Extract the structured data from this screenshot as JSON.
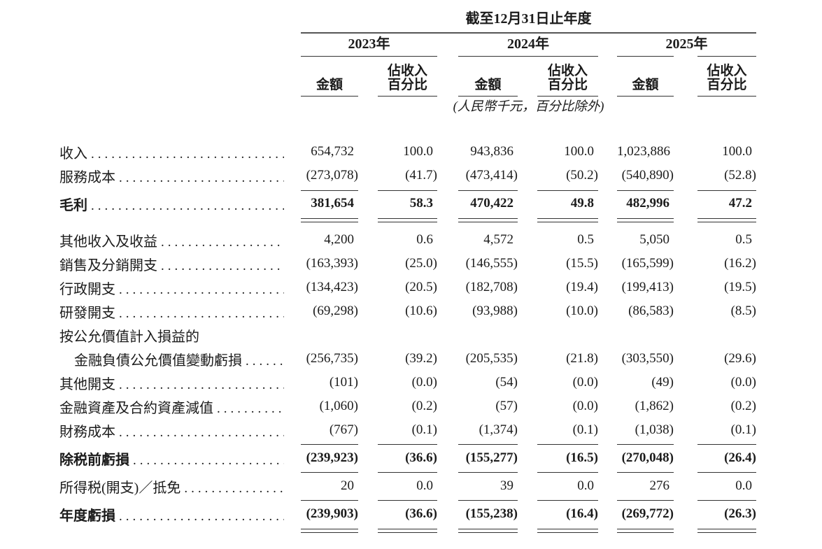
{
  "header": {
    "period_title": "截至12月31日止年度",
    "years": [
      {
        "label": "2023年"
      },
      {
        "label": "2024年"
      },
      {
        "label": "2025年"
      }
    ],
    "amount_header": "金額",
    "percent_header_line1": "佔收入",
    "percent_header_line2": "百分比",
    "unit_note": "(人民幣千元，百分比除外)"
  },
  "table": {
    "column_keys": [
      "amount_2023",
      "pct_2023",
      "amount_2024",
      "pct_2024",
      "amount_2025",
      "pct_2025"
    ],
    "rows": [
      {
        "type": "data",
        "label": "收入",
        "values": [
          "654,732",
          "100.0",
          "943,836",
          "100.0",
          "1,023,886",
          "100.0"
        ]
      },
      {
        "type": "data",
        "label": "服務成本",
        "values": [
          "(273,078)",
          "(41.7)",
          "(473,414)",
          "(50.2)",
          "(540,890)",
          "(52.8)"
        ]
      },
      {
        "type": "rule",
        "variant": "a"
      },
      {
        "type": "data",
        "variant": "mid",
        "bold": true,
        "label": "毛利",
        "values": [
          "381,654",
          "58.3",
          "470,422",
          "49.8",
          "482,996",
          "47.2"
        ]
      },
      {
        "type": "double-rule",
        "variant": "gross"
      },
      {
        "type": "data",
        "label": "其他收入及收益",
        "values": [
          "4,200",
          "0.6",
          "4,572",
          "0.5",
          "5,050",
          "0.5"
        ]
      },
      {
        "type": "data",
        "label": "銷售及分銷開支",
        "values": [
          "(163,393)",
          "(25.0)",
          "(146,555)",
          "(15.5)",
          "(165,599)",
          "(16.2)"
        ]
      },
      {
        "type": "data",
        "label": "行政開支",
        "values": [
          "(134,423)",
          "(20.5)",
          "(182,708)",
          "(19.4)",
          "(199,413)",
          "(19.5)"
        ]
      },
      {
        "type": "data",
        "label": "研發開支",
        "values": [
          "(69,298)",
          "(10.6)",
          "(93,988)",
          "(10.0)",
          "(86,583)",
          "(8.5)"
        ]
      },
      {
        "type": "label-only",
        "label": "按公允價值計入損益的"
      },
      {
        "type": "data",
        "indent": true,
        "label": "金融負債公允價值變動虧損",
        "values": [
          "(256,735)",
          "(39.2)",
          "(205,535)",
          "(21.8)",
          "(303,550)",
          "(29.6)"
        ]
      },
      {
        "type": "data",
        "label": "其他開支",
        "values": [
          "(101)",
          "(0.0)",
          "(54)",
          "(0.0)",
          "(49)",
          "(0.0)"
        ]
      },
      {
        "type": "data",
        "label": "金融資產及合約資產減值",
        "values": [
          "(1,060)",
          "(0.2)",
          "(57)",
          "(0.0)",
          "(1,862)",
          "(0.2)"
        ]
      },
      {
        "type": "data",
        "label": "財務成本",
        "values": [
          "(767)",
          "(0.1)",
          "(1,374)",
          "(0.1)",
          "(1,038)",
          "(0.1)"
        ]
      },
      {
        "type": "rule",
        "variant": "b"
      },
      {
        "type": "data",
        "variant": "tall",
        "bold": true,
        "label": "除税前虧損",
        "values": [
          "(239,923)",
          "(36.6)",
          "(155,277)",
          "(16.5)",
          "(270,048)",
          "(26.4)"
        ]
      },
      {
        "type": "rule",
        "variant": "c"
      },
      {
        "type": "data",
        "variant": "tall",
        "label": "所得税(開支)／抵免",
        "values": [
          "20",
          "0.0",
          "39",
          "0.0",
          "276",
          "0.0"
        ]
      },
      {
        "type": "rule",
        "variant": "c"
      },
      {
        "type": "data",
        "variant": "tall",
        "bold": true,
        "label": "年度虧損",
        "values": [
          "(239,903)",
          "(36.6)",
          "(155,238)",
          "(16.4)",
          "(269,772)",
          "(26.3)"
        ]
      },
      {
        "type": "double-rule",
        "variant": "final"
      }
    ]
  }
}
